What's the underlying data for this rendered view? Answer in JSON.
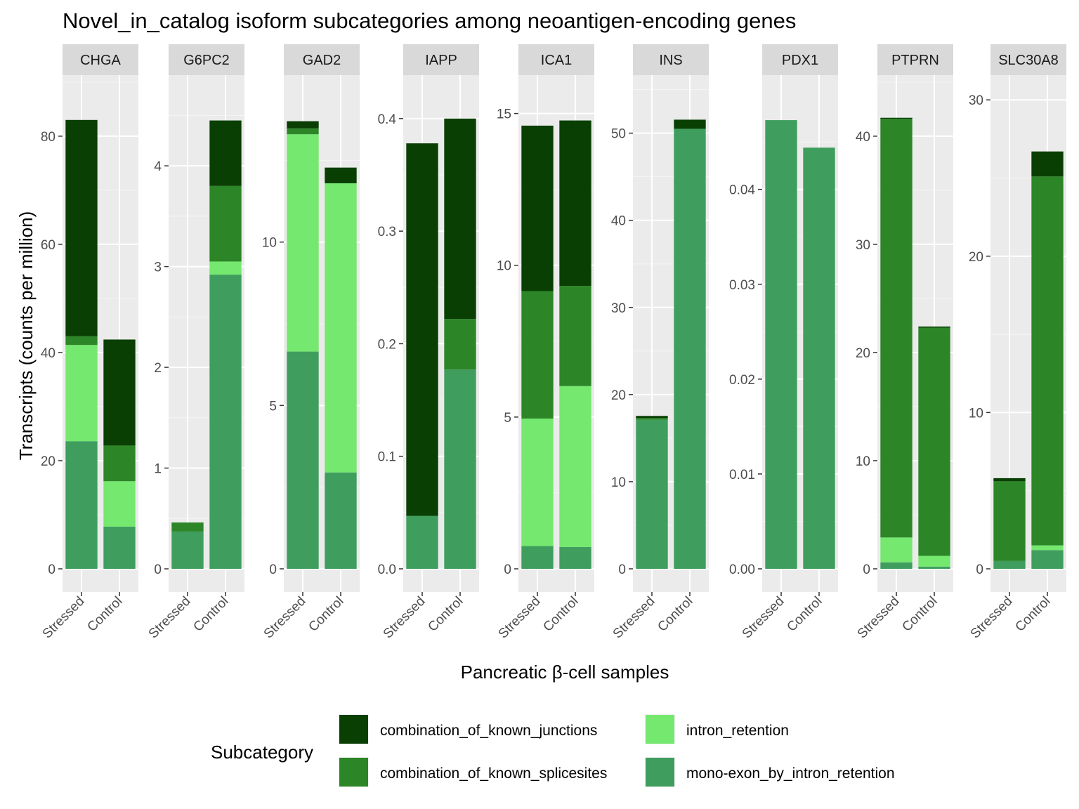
{
  "chart_data": {
    "type": "bar",
    "stacked": true,
    "title": "Novel_in_catalog isoform subcategories among neoantigen-encoding genes",
    "xlabel": "Pancreatic β-cell samples",
    "ylabel": "Transcripts (counts per million)",
    "x_categories": [
      "Stressed",
      "Control"
    ],
    "facet_scales": "free_y",
    "grid": true,
    "legend": {
      "position": "bottom",
      "title": "Subcategory",
      "order": [
        "combination_of_known_junctions",
        "intron_retention",
        "combination_of_known_splicesites",
        "mono-exon_by_intron_retention"
      ]
    },
    "stack_order": [
      "mono-exon_by_intron_retention",
      "intron_retention",
      "combination_of_known_splicesites",
      "combination_of_known_junctions"
    ],
    "colors": {
      "combination_of_known_junctions": "#0a3f04",
      "combination_of_known_splicesites": "#2c8627",
      "intron_retention": "#74e86f",
      "mono-exon_by_intron_retention": "#3f9e5e"
    },
    "facets": [
      {
        "gene": "CHGA",
        "ylim": [
          0,
          87
        ],
        "ticks": [
          "0",
          "20",
          "40",
          "60",
          "80"
        ],
        "values": {
          "Stressed": {
            "mono-exon_by_intron_retention": 23.6,
            "intron_retention": 17.8,
            "combination_of_known_splicesites": 1.6,
            "combination_of_known_junctions": 40.0
          },
          "Control": {
            "mono-exon_by_intron_retention": 7.8,
            "intron_retention": 8.4,
            "combination_of_known_splicesites": 6.6,
            "combination_of_known_junctions": 19.6
          }
        }
      },
      {
        "gene": "G6PC2",
        "ylim": [
          0,
          4.67
        ],
        "ticks": [
          "0",
          "1",
          "2",
          "3",
          "4"
        ],
        "values": {
          "Stressed": {
            "mono-exon_by_intron_retention": 0.37,
            "intron_retention": 0,
            "combination_of_known_splicesites": 0.09,
            "combination_of_known_junctions": 0
          },
          "Control": {
            "mono-exon_by_intron_retention": 2.92,
            "intron_retention": 0.13,
            "combination_of_known_splicesites": 0.75,
            "combination_of_known_junctions": 0.65
          }
        }
      },
      {
        "gene": "GAD2",
        "ylim": [
          0,
          14.4
        ],
        "ticks": [
          "0",
          "5",
          "10"
        ],
        "values": {
          "Stressed": {
            "mono-exon_by_intron_retention": 6.65,
            "intron_retention": 6.65,
            "combination_of_known_splicesites": 0.18,
            "combination_of_known_junctions": 0.22
          },
          "Control": {
            "mono-exon_by_intron_retention": 2.95,
            "intron_retention": 8.85,
            "combination_of_known_splicesites": 0,
            "combination_of_known_junctions": 0.48
          }
        }
      },
      {
        "gene": "IAPP",
        "ylim": [
          0,
          0.418
        ],
        "ticks": [
          "0.0",
          "0.1",
          "0.2",
          "0.3",
          "0.4"
        ],
        "values": {
          "Stressed": {
            "mono-exon_by_intron_retention": 0.047,
            "intron_retention": 0,
            "combination_of_known_splicesites": 0,
            "combination_of_known_junctions": 0.331
          },
          "Control": {
            "mono-exon_by_intron_retention": 0.177,
            "intron_retention": 0,
            "combination_of_known_splicesites": 0.045,
            "combination_of_known_junctions": 0.178
          }
        }
      },
      {
        "gene": "ICA1",
        "ylim": [
          0,
          15.5
        ],
        "ticks": [
          "0",
          "5",
          "10",
          "15"
        ],
        "values": {
          "Stressed": {
            "mono-exon_by_intron_retention": 0.75,
            "intron_retention": 4.2,
            "combination_of_known_splicesites": 4.2,
            "combination_of_known_junctions": 5.45
          },
          "Control": {
            "mono-exon_by_intron_retention": 0.72,
            "intron_retention": 5.3,
            "combination_of_known_splicesites": 3.3,
            "combination_of_known_junctions": 5.45
          }
        }
      },
      {
        "gene": "INS",
        "ylim": [
          0,
          54.0
        ],
        "ticks": [
          "0",
          "10",
          "20",
          "30",
          "40",
          "50"
        ],
        "values": {
          "Stressed": {
            "mono-exon_by_intron_retention": 17.1,
            "intron_retention": 0,
            "combination_of_known_splicesites": 0.2,
            "combination_of_known_junctions": 0.25
          },
          "Control": {
            "mono-exon_by_intron_retention": 50.5,
            "intron_retention": 0,
            "combination_of_known_splicesites": 0,
            "combination_of_known_junctions": 1.05
          }
        }
      },
      {
        "gene": "PDX1",
        "ylim": [
          0,
          0.0496
        ],
        "ticks": [
          "0.00",
          "0.01",
          "0.02",
          "0.03",
          "0.04"
        ],
        "values": {
          "Stressed": {
            "mono-exon_by_intron_retention": 0.0473,
            "intron_retention": 0,
            "combination_of_known_splicesites": 0,
            "combination_of_known_junctions": 0
          },
          "Control": {
            "mono-exon_by_intron_retention": 0.0444,
            "intron_retention": 0,
            "combination_of_known_splicesites": 0,
            "combination_of_known_junctions": 0
          }
        }
      },
      {
        "gene": "PTPRN",
        "ylim": [
          0,
          43.5
        ],
        "ticks": [
          "0",
          "10",
          "20",
          "30",
          "40"
        ],
        "values": {
          "Stressed": {
            "mono-exon_by_intron_retention": 0.6,
            "intron_retention": 2.3,
            "combination_of_known_splicesites": 38.7,
            "combination_of_known_junctions": 0.1
          },
          "Control": {
            "mono-exon_by_intron_retention": 0.2,
            "intron_retention": 1.0,
            "combination_of_known_splicesites": 21.1,
            "combination_of_known_junctions": 0.1
          }
        }
      },
      {
        "gene": "SLC30A8",
        "ylim": [
          0,
          30.1
        ],
        "ticks": [
          "0",
          "10",
          "20",
          "30"
        ],
        "values": {
          "Stressed": {
            "mono-exon_by_intron_retention": 0.5,
            "intron_retention": 0,
            "combination_of_known_splicesites": 5.1,
            "combination_of_known_junctions": 0.2
          },
          "Control": {
            "mono-exon_by_intron_retention": 1.2,
            "intron_retention": 0.3,
            "combination_of_known_splicesites": 23.6,
            "combination_of_known_junctions": 1.6
          }
        }
      }
    ]
  }
}
